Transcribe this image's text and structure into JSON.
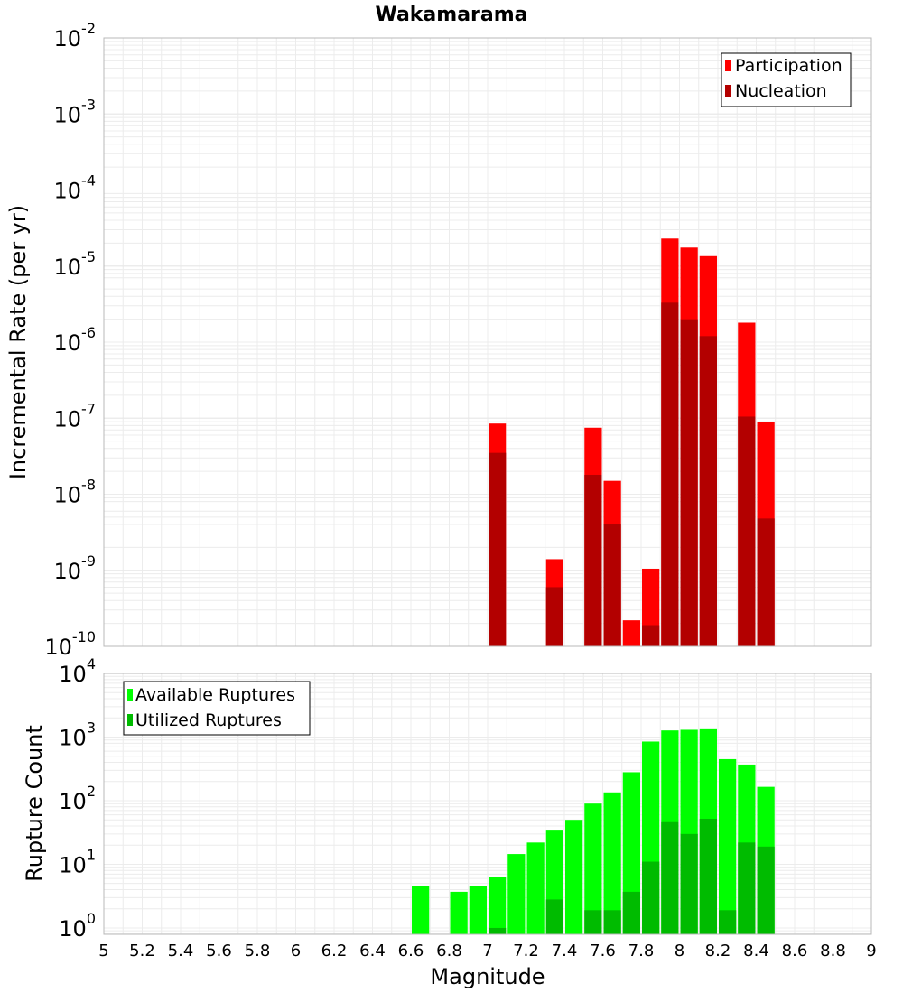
{
  "chart_data": [
    {
      "type": "bar",
      "title": "Wakamarama",
      "ylabel": "Incremental Rate (per yr)",
      "xlabel": "",
      "yscale": "log",
      "ylim_exp": [
        -10,
        -2
      ],
      "xlim": [
        5,
        9
      ],
      "y_tick_labels": [
        {
          "base": "10",
          "exp": "-10"
        },
        {
          "base": "10",
          "exp": "-9"
        },
        {
          "base": "10",
          "exp": "-8"
        },
        {
          "base": "10",
          "exp": "-7"
        },
        {
          "base": "10",
          "exp": "-6"
        },
        {
          "base": "10",
          "exp": "-5"
        },
        {
          "base": "10",
          "exp": "-4"
        },
        {
          "base": "10",
          "exp": "-3"
        },
        {
          "base": "10",
          "exp": "-2"
        }
      ],
      "legend": {
        "position": "top-right",
        "entries": [
          "Participation",
          "Nucleation"
        ]
      },
      "series": [
        {
          "name": "Participation",
          "color": "#ff0000",
          "x": [
            7.05,
            7.35,
            7.55,
            7.65,
            7.75,
            7.85,
            7.95,
            8.05,
            8.15,
            8.35,
            8.45
          ],
          "values": [
            8.5e-08,
            1.4e-09,
            7.5e-08,
            1.5e-08,
            2.2e-10,
            1.05e-09,
            2.3e-05,
            1.75e-05,
            1.35e-05,
            1.8e-06,
            9e-08
          ]
        },
        {
          "name": "Nucleation",
          "color": "#b30000",
          "x": [
            7.05,
            7.35,
            7.55,
            7.65,
            7.85,
            7.95,
            8.05,
            8.15,
            8.35,
            8.45
          ],
          "values": [
            3.5e-08,
            6e-10,
            1.8e-08,
            4e-09,
            1.9e-10,
            3.3e-06,
            2e-06,
            1.2e-06,
            1.05e-07,
            4.8e-09
          ]
        }
      ]
    },
    {
      "type": "bar",
      "title": "",
      "ylabel": "Rupture Count",
      "xlabel": "Magnitude",
      "yscale": "log",
      "ylim_exp": [
        -0.1,
        4
      ],
      "xlim": [
        5,
        9
      ],
      "x_tick_labels": [
        "5",
        "5.2",
        "5.4",
        "5.6",
        "5.8",
        "6",
        "6.2",
        "6.4",
        "6.6",
        "6.8",
        "7",
        "7.2",
        "7.4",
        "7.6",
        "7.8",
        "8",
        "8.2",
        "8.4",
        "8.6",
        "8.8",
        "9"
      ],
      "y_tick_labels": [
        {
          "base": "10",
          "exp": "0"
        },
        {
          "base": "10",
          "exp": "1"
        },
        {
          "base": "10",
          "exp": "2"
        },
        {
          "base": "10",
          "exp": "3"
        },
        {
          "base": "10",
          "exp": "4"
        }
      ],
      "legend": {
        "position": "top-left",
        "entries": [
          "Available Ruptures",
          "Utilized Ruptures"
        ]
      },
      "series": [
        {
          "name": "Available Ruptures",
          "color": "#00ff00",
          "x": [
            6.65,
            6.85,
            6.95,
            7.05,
            7.15,
            7.25,
            7.35,
            7.45,
            7.55,
            7.65,
            7.75,
            7.85,
            7.95,
            8.05,
            8.15,
            8.25,
            8.35,
            8.45
          ],
          "values": [
            4.6,
            3.7,
            4.6,
            6.4,
            14.5,
            22,
            35,
            50,
            90,
            135,
            280,
            850,
            1270,
            1300,
            1370,
            450,
            370,
            165
          ]
        },
        {
          "name": "Utilized Ruptures",
          "color": "#00bb00",
          "x": [
            7.05,
            7.35,
            7.55,
            7.65,
            7.75,
            7.85,
            7.95,
            8.05,
            8.15,
            8.25,
            8.35,
            8.45
          ],
          "values": [
            1,
            2.8,
            1.9,
            1.9,
            3.7,
            11,
            46,
            30,
            52,
            1.9,
            22,
            19
          ]
        }
      ]
    }
  ]
}
